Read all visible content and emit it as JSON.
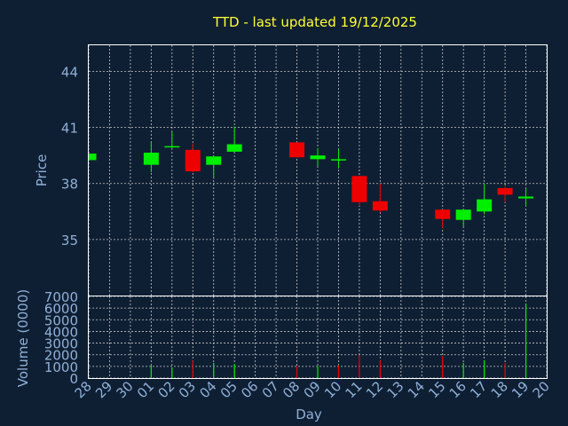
{
  "chart_data": {
    "type": "candlestick",
    "title": "TTD - last updated 19/12/2025",
    "xlabel": "Day",
    "x_ticks": [
      "28",
      "29",
      "30",
      "01",
      "02",
      "03",
      "04",
      "05",
      "06",
      "07",
      "08",
      "09",
      "10",
      "11",
      "12",
      "13",
      "14",
      "15",
      "16",
      "17",
      "18",
      "19",
      "20"
    ],
    "price": {
      "ylabel": "Price",
      "ylim": [
        32.0,
        45.4
      ],
      "yticks": [
        35,
        38,
        41,
        44
      ],
      "candles": [
        {
          "day": "28",
          "open": 39.25,
          "high": 39.6,
          "low": 39.25,
          "close": 39.6
        },
        {
          "day": "01",
          "open": 39.0,
          "high": 40.25,
          "low": 38.6,
          "close": 39.65
        },
        {
          "day": "02",
          "open": 39.95,
          "high": 40.75,
          "low": 39.9,
          "close": 40.0
        },
        {
          "day": "03",
          "open": 39.8,
          "high": 40.15,
          "low": 38.6,
          "close": 38.65
        },
        {
          "day": "04",
          "open": 39.0,
          "high": 39.45,
          "low": 38.25,
          "close": 39.45
        },
        {
          "day": "05",
          "open": 39.7,
          "high": 41.05,
          "low": 39.65,
          "close": 40.1
        },
        {
          "day": "08",
          "open": 40.2,
          "high": 40.2,
          "low": 39.4,
          "close": 39.4
        },
        {
          "day": "09",
          "open": 39.3,
          "high": 39.9,
          "low": 38.9,
          "close": 39.5
        },
        {
          "day": "10",
          "open": 39.3,
          "high": 39.85,
          "low": 38.8,
          "close": 39.3
        },
        {
          "day": "11",
          "open": 38.4,
          "high": 38.4,
          "low": 36.8,
          "close": 37.0
        },
        {
          "day": "12",
          "open": 37.05,
          "high": 38.0,
          "low": 36.45,
          "close": 36.55
        },
        {
          "day": "15",
          "open": 36.6,
          "high": 36.6,
          "low": 35.6,
          "close": 36.1
        },
        {
          "day": "16",
          "open": 36.05,
          "high": 36.6,
          "low": 35.7,
          "close": 36.6
        },
        {
          "day": "17",
          "open": 36.5,
          "high": 38.0,
          "low": 36.35,
          "close": 37.15
        },
        {
          "day": "18",
          "open": 37.75,
          "high": 37.85,
          "low": 37.0,
          "close": 37.4
        },
        {
          "day": "19",
          "open": 37.2,
          "high": 37.75,
          "low": 36.8,
          "close": 37.3
        }
      ]
    },
    "volume": {
      "ylabel": "Volume (0000)",
      "ylim": [
        0,
        7000
      ],
      "yticks": [
        0,
        1000,
        2000,
        3000,
        4000,
        5000,
        6000,
        7000
      ],
      "bars": [
        {
          "day": "01",
          "value": 1100,
          "color": "#00ee00"
        },
        {
          "day": "02",
          "value": 900,
          "color": "#00ee00"
        },
        {
          "day": "03",
          "value": 1500,
          "color": "#ee0000"
        },
        {
          "day": "04",
          "value": 1300,
          "color": "#00ee00"
        },
        {
          "day": "05",
          "value": 1200,
          "color": "#00ee00"
        },
        {
          "day": "08",
          "value": 1000,
          "color": "#ee0000"
        },
        {
          "day": "09",
          "value": 1000,
          "color": "#00ee00"
        },
        {
          "day": "10",
          "value": 1100,
          "color": "#ee0000"
        },
        {
          "day": "11",
          "value": 2000,
          "color": "#ee0000"
        },
        {
          "day": "12",
          "value": 1500,
          "color": "#ee0000"
        },
        {
          "day": "15",
          "value": 1900,
          "color": "#ee0000"
        },
        {
          "day": "16",
          "value": 1300,
          "color": "#00ee00"
        },
        {
          "day": "17",
          "value": 1500,
          "color": "#00ee00"
        },
        {
          "day": "18",
          "value": 1300,
          "color": "#ee0000"
        },
        {
          "day": "19",
          "value": 6400,
          "color": "#00ee00"
        }
      ]
    },
    "colors": {
      "up": "#00ee00",
      "down": "#ee0000",
      "background": "#0f1f33"
    },
    "grid": true
  }
}
